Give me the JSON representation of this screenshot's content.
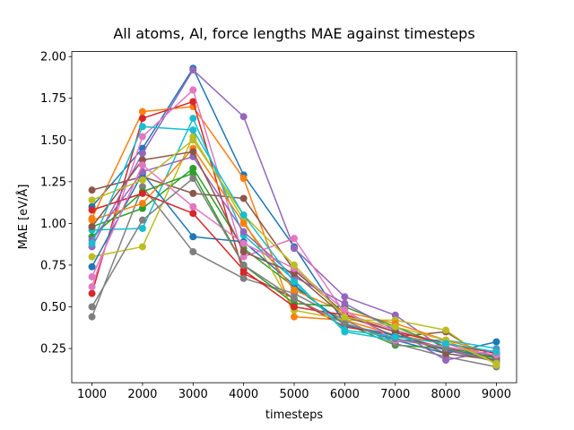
{
  "chart_data": {
    "type": "line",
    "title": "All atoms, Al, force lengths MAE against timesteps",
    "x_label": "timesteps",
    "y_label": "MAE [eV/Å]",
    "x": [
      1000,
      2000,
      3000,
      4000,
      5000,
      6000,
      7000,
      8000,
      9000
    ],
    "xlim": [
      600,
      9400
    ],
    "xticks": [
      1000,
      2000,
      3000,
      4000,
      5000,
      6000,
      7000,
      8000,
      9000
    ],
    "ylim": [
      0.045,
      2.03
    ],
    "yticks": [
      0.25,
      {
        "value": 0.5,
        "label": "0.50"
      },
      0.75,
      {
        "value": 1.0,
        "label": "1.00"
      },
      1.25,
      {
        "value": 1.5,
        "label": "1.50"
      },
      1.75,
      {
        "value": 2.0,
        "label": "2.00"
      }
    ],
    "grid": false,
    "markers": true,
    "series": [
      {
        "color": "#1f77b4",
        "values": [
          1.1,
          1.45,
          1.93,
          1.29,
          0.86,
          0.4,
          0.3,
          0.22,
          0.29
        ]
      },
      {
        "color": "#ff7f0e",
        "values": [
          1.03,
          1.67,
          1.7,
          1.27,
          0.44,
          0.42,
          0.33,
          0.28,
          0.2
        ]
      },
      {
        "color": "#2ca02c",
        "values": [
          0.98,
          1.09,
          1.33,
          0.85,
          0.62,
          0.4,
          0.27,
          0.25,
          0.18
        ]
      },
      {
        "color": "#d62728",
        "values": [
          0.58,
          1.63,
          1.73,
          0.7,
          0.55,
          0.38,
          0.33,
          0.25,
          0.21
        ]
      },
      {
        "color": "#9467bd",
        "values": [
          0.86,
          1.42,
          1.92,
          1.64,
          0.85,
          0.56,
          0.45,
          0.24,
          0.17
        ]
      },
      {
        "color": "#8c564b",
        "values": [
          1.2,
          1.28,
          1.18,
          1.15,
          0.72,
          0.46,
          0.32,
          0.35,
          0.16
        ]
      },
      {
        "color": "#e377c2",
        "values": [
          0.62,
          1.52,
          1.8,
          0.8,
          0.91,
          0.46,
          0.36,
          0.28,
          0.19
        ]
      },
      {
        "color": "#7f7f7f",
        "values": [
          0.44,
          1.22,
          0.83,
          0.67,
          0.58,
          0.42,
          0.28,
          0.2,
          0.14
        ]
      },
      {
        "color": "#bcbd22",
        "values": [
          0.8,
          0.86,
          1.52,
          1.02,
          0.48,
          0.42,
          0.42,
          0.36,
          0.15
        ]
      },
      {
        "color": "#17becf",
        "values": [
          0.96,
          0.97,
          1.63,
          0.93,
          0.66,
          0.35,
          0.3,
          0.3,
          0.25
        ]
      },
      {
        "color": "#1f77b4",
        "values": [
          0.74,
          1.3,
          0.92,
          0.89,
          0.63,
          0.39,
          0.33,
          0.24,
          0.2
        ]
      },
      {
        "color": "#ff7f0e",
        "values": [
          1.02,
          1.12,
          1.45,
          1.0,
          0.6,
          0.47,
          0.4,
          0.3,
          0.22
        ]
      },
      {
        "color": "#2ca02c",
        "values": [
          0.92,
          1.19,
          1.3,
          0.75,
          0.52,
          0.5,
          0.38,
          0.26,
          0.19
        ]
      },
      {
        "color": "#d62728",
        "values": [
          1.08,
          1.18,
          1.06,
          0.72,
          0.5,
          0.45,
          0.35,
          0.28,
          0.22
        ]
      },
      {
        "color": "#9467bd",
        "values": [
          0.9,
          1.31,
          1.4,
          0.95,
          0.68,
          0.52,
          0.36,
          0.18,
          0.24
        ]
      },
      {
        "color": "#8c564b",
        "values": [
          0.98,
          1.38,
          1.43,
          0.83,
          0.7,
          0.44,
          0.35,
          0.22,
          0.18
        ]
      },
      {
        "color": "#e377c2",
        "values": [
          0.68,
          1.35,
          1.1,
          0.88,
          0.73,
          0.48,
          0.3,
          0.26,
          0.21
        ]
      },
      {
        "color": "#7f7f7f",
        "values": [
          0.5,
          1.02,
          1.27,
          0.75,
          0.55,
          0.4,
          0.31,
          0.25,
          0.17
        ]
      },
      {
        "color": "#bcbd22",
        "values": [
          1.14,
          1.26,
          1.5,
          1.05,
          0.75,
          0.44,
          0.38,
          0.3,
          0.16
        ]
      },
      {
        "color": "#17becf",
        "values": [
          0.88,
          1.58,
          1.56,
          1.05,
          0.65,
          0.36,
          0.32,
          0.28,
          0.23
        ]
      }
    ]
  }
}
